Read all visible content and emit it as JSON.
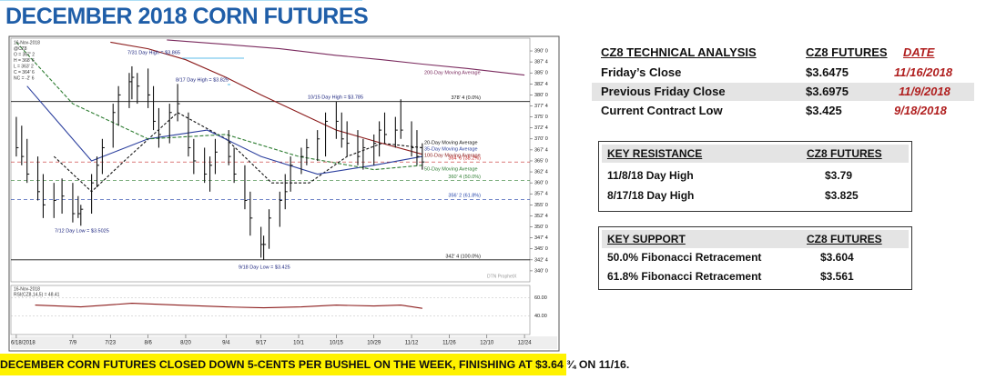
{
  "title": "DECEMBER 2018 CORN FUTURES",
  "chart_data": {
    "type": "ohlc",
    "header_lines": [
      "16-Nov-2018",
      "@CZ8",
      "O = 367' 2",
      "H = 368' 6",
      "L = 363' 2",
      "C = 364' 6",
      "NC = -2' 6"
    ],
    "xlim": [
      "2018-06-16",
      "2018-12-26"
    ],
    "xticks": [
      {
        "value": "2018-06-18",
        "label": "6/18/2018"
      },
      {
        "value": "2018-07-09",
        "label": "7/9"
      },
      {
        "value": "2018-07-23",
        "label": "7/23"
      },
      {
        "value": "2018-08-06",
        "label": "8/6"
      },
      {
        "value": "2018-08-20",
        "label": "8/20"
      },
      {
        "value": "2018-09-04",
        "label": "9/4"
      },
      {
        "value": "2018-09-17",
        "label": "9/17"
      },
      {
        "value": "2018-10-01",
        "label": "10/1"
      },
      {
        "value": "2018-10-15",
        "label": "10/15"
      },
      {
        "value": "2018-10-29",
        "label": "10/29"
      },
      {
        "value": "2018-11-12",
        "label": "11/12"
      },
      {
        "value": "2018-11-26",
        "label": "11/26"
      },
      {
        "value": "2018-12-10",
        "label": "12/10"
      },
      {
        "value": "2018-12-24",
        "label": "12/24"
      }
    ],
    "ylim": [
      337.5,
      392.9
    ],
    "yticks": [
      {
        "value": 390,
        "label": "390' 0"
      },
      {
        "value": 387.5,
        "label": "387' 4"
      },
      {
        "value": 385,
        "label": "385' 0"
      },
      {
        "value": 382.5,
        "label": "382' 4"
      },
      {
        "value": 380,
        "label": "380' 0"
      },
      {
        "value": 377.5,
        "label": "377' 4"
      },
      {
        "value": 375,
        "label": "375' 0"
      },
      {
        "value": 372.5,
        "label": "372' 4"
      },
      {
        "value": 370,
        "label": "370' 0"
      },
      {
        "value": 367.5,
        "label": "367' 4"
      },
      {
        "value": 365,
        "label": "365' 0"
      },
      {
        "value": 362.5,
        "label": "362' 4"
      },
      {
        "value": 360,
        "label": "360' 0"
      },
      {
        "value": 357.5,
        "label": "357' 4"
      },
      {
        "value": 355,
        "label": "355' 0"
      },
      {
        "value": 352.5,
        "label": "352' 4"
      },
      {
        "value": 350,
        "label": "350' 0"
      },
      {
        "value": 347.5,
        "label": "347' 4"
      },
      {
        "value": 345,
        "label": "345' 0"
      },
      {
        "value": 342.5,
        "label": "342' 4"
      },
      {
        "value": 340,
        "label": "340' 0"
      }
    ],
    "color": "#111111",
    "x": [
      "2018-06-18",
      "2018-06-20",
      "2018-06-22",
      "2018-06-26",
      "2018-06-28",
      "2018-07-02",
      "2018-07-05",
      "2018-07-09",
      "2018-07-11",
      "2018-07-12",
      "2018-07-16",
      "2018-07-18",
      "2018-07-20",
      "2018-07-24",
      "2018-07-26",
      "2018-07-30",
      "2018-07-31",
      "2018-08-02",
      "2018-08-06",
      "2018-08-08",
      "2018-08-10",
      "2018-08-14",
      "2018-08-17",
      "2018-08-21",
      "2018-08-23",
      "2018-08-27",
      "2018-08-29",
      "2018-08-31",
      "2018-09-05",
      "2018-09-07",
      "2018-09-11",
      "2018-09-13",
      "2018-09-17",
      "2018-09-18",
      "2018-09-20",
      "2018-09-24",
      "2018-09-26",
      "2018-09-28",
      "2018-10-02",
      "2018-10-04",
      "2018-10-08",
      "2018-10-11",
      "2018-10-15",
      "2018-10-17",
      "2018-10-19",
      "2018-10-23",
      "2018-10-25",
      "2018-10-29",
      "2018-10-31",
      "2018-11-02",
      "2018-11-06",
      "2018-11-08",
      "2018-11-12",
      "2018-11-14",
      "2018-11-16"
    ],
    "high": [
      375,
      373,
      370,
      366,
      362,
      360,
      361,
      360,
      357,
      355,
      362,
      366,
      370,
      378,
      382,
      385,
      386.5,
      385,
      386,
      382,
      377,
      378,
      382.5,
      376,
      370,
      368,
      366,
      370,
      372,
      368,
      364,
      358,
      350,
      348,
      354,
      358,
      362,
      366,
      368,
      370,
      372,
      376,
      378.5,
      376,
      374,
      372,
      370,
      371,
      374,
      376,
      375,
      379,
      374,
      372,
      369
    ],
    "low": [
      366,
      364,
      360,
      356,
      352,
      352,
      353,
      351,
      352,
      350.25,
      353,
      359,
      362,
      368,
      373,
      377,
      379,
      378,
      377,
      372,
      368,
      369,
      374,
      366,
      362,
      360,
      358,
      362,
      364,
      360,
      354,
      348,
      343,
      342.5,
      345,
      350,
      354,
      358,
      362,
      364,
      365,
      366,
      370,
      368,
      366,
      364,
      363,
      364,
      366,
      369,
      368,
      370,
      366,
      364,
      363
    ],
    "close": [
      368,
      366,
      362,
      358,
      355,
      356,
      357,
      353,
      353,
      354,
      360,
      364,
      368,
      376,
      380,
      383,
      384,
      382,
      380,
      374,
      371,
      376,
      378,
      368,
      365,
      362,
      364,
      367,
      366,
      362,
      356,
      352,
      346,
      346,
      352,
      356,
      358,
      364,
      366,
      368,
      370,
      374,
      374,
      370,
      369,
      366,
      368,
      369,
      372,
      371,
      372,
      372,
      368,
      366,
      364.75
    ],
    "moving_averages": [
      {
        "name": "200-Day Moving Average",
        "color": "#7a2a5e",
        "x": [
          "2018-08-13",
          "2018-09-04",
          "2018-09-24",
          "2018-10-15",
          "2018-11-01",
          "2018-11-16",
          "2018-12-03",
          "2018-12-24"
        ],
        "values": [
          392.5,
          391.5,
          390.5,
          389,
          388,
          387,
          386,
          384.5
        ]
      },
      {
        "name": "20-Day Moving Average",
        "color": "#111111",
        "dash": "3,2",
        "x": [
          "2018-07-02",
          "2018-07-16",
          "2018-07-30",
          "2018-08-17",
          "2018-09-04",
          "2018-09-21",
          "2018-10-05",
          "2018-10-19",
          "2018-11-01",
          "2018-11-16"
        ],
        "values": [
          366,
          358,
          366,
          376,
          370,
          360,
          360,
          366,
          369,
          368
        ]
      },
      {
        "name": "35-Day Moving Average",
        "color": "#2b3f9e",
        "x": [
          "2018-06-22",
          "2018-07-16",
          "2018-08-06",
          "2018-08-28",
          "2018-09-17",
          "2018-10-08",
          "2018-10-29",
          "2018-11-16"
        ],
        "values": [
          382,
          365,
          370,
          372,
          366,
          362,
          364,
          366
        ]
      },
      {
        "name": "100-Day Moving Average",
        "color": "#8b1b1b",
        "x": [
          "2018-07-23",
          "2018-08-06",
          "2018-08-20",
          "2018-09-04",
          "2018-09-17",
          "2018-10-01",
          "2018-10-15",
          "2018-11-01",
          "2018-11-16"
        ],
        "values": [
          392,
          390.5,
          388,
          384,
          380,
          376,
          372,
          369,
          366.5
        ]
      },
      {
        "name": "50-Day Moving Average",
        "color": "#2e7d32",
        "dash": "4,2",
        "x": [
          "2018-06-18",
          "2018-07-09",
          "2018-08-06",
          "2018-09-04",
          "2018-10-01",
          "2018-10-29",
          "2018-11-16"
        ],
        "values": [
          392,
          378,
          370,
          371,
          366,
          363,
          364
        ]
      }
    ],
    "fib_levels": [
      {
        "value": 378.5,
        "label": "378' 4 (0.0%)",
        "color": "#111111"
      },
      {
        "value": 364.75,
        "label": "364' 6 (38.2%)",
        "color": "#c62828"
      },
      {
        "value": 360.5,
        "label": "360' 4 (50.0%)",
        "color": "#2e7d32"
      },
      {
        "value": 356.25,
        "label": "356' 2 (61.8%)",
        "color": "#1e3fa8"
      },
      {
        "value": 342.5,
        "label": "342' 4 (100.0%)",
        "color": "#111111"
      }
    ],
    "annotations": [
      "7/31 Day High = $3.865",
      "8/17 Day High = $3.825",
      "10/15 Day High = $3.785",
      "7/12 Day Low = $3.5025",
      "9/18 Day Low = $3.425"
    ],
    "watermark": "DTN ProphetX",
    "rsi": {
      "header": "16-Nov-2018",
      "label": "RSI(CZ8,14,5) = 48.41",
      "color": "#8b1b1b",
      "ylim": [
        20,
        73.3
      ],
      "yticks": [
        {
          "value": 60,
          "label": "60.00"
        },
        {
          "value": 40,
          "label": "40.00"
        }
      ],
      "x": [
        "2018-06-25",
        "2018-07-12",
        "2018-07-31",
        "2018-08-17",
        "2018-09-04",
        "2018-09-18",
        "2018-10-02",
        "2018-10-15",
        "2018-10-29",
        "2018-11-08",
        "2018-11-16"
      ],
      "values": [
        52,
        50,
        54,
        52,
        50,
        49,
        50,
        52,
        51,
        52,
        48.41
      ]
    }
  },
  "analysis_table": {
    "header": [
      "CZ8 TECHNICAL ANALYSIS",
      "CZ8 FUTURES",
      "DATE"
    ],
    "rows": [
      [
        "Friday’s Close",
        "$3.6475",
        "11/16/2018"
      ],
      [
        "Previous Friday Close",
        "$3.6975",
        "11/9/2018"
      ],
      [
        "Current Contract Low",
        "$3.425",
        "9/18/2018"
      ]
    ]
  },
  "resistance_table": {
    "header": [
      "KEY RESISTANCE",
      "CZ8 FUTURES"
    ],
    "rows": [
      [
        "11/8/18 Day High",
        "$3.79"
      ],
      [
        "8/17/18 Day High",
        "$3.825"
      ]
    ]
  },
  "support_table": {
    "header": [
      "KEY SUPPORT",
      "CZ8 FUTURES"
    ],
    "rows": [
      [
        "50.0% Fibonacci Retracement",
        "$3.604"
      ],
      [
        "61.8% Fibonacci Retracement",
        "$3.561"
      ]
    ]
  },
  "footer": "DECEMBER CORN FUTURES CLOSED DOWN 5-CENTS PER BUSHEL ON THE WEEK, FINISHING AT $3.64 ¾ ON 11/16."
}
